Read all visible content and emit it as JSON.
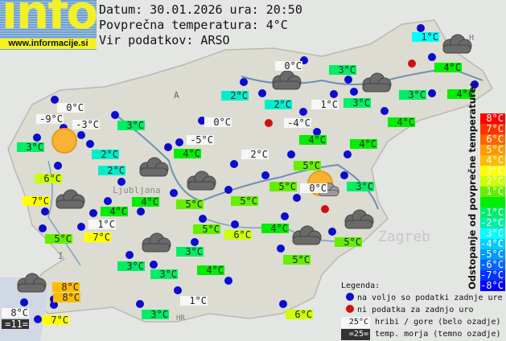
{
  "logo": {
    "word": "info",
    "url": "www.informacije.si"
  },
  "header": {
    "date_line": "Datum: 30.01.2026 ura: 20:50",
    "avg_line": "Povprečna temperatura: 4°C",
    "source_line": "Vir podatkov: ARSO"
  },
  "map_labels": {
    "austria": "A",
    "italy": "I",
    "croatia": "HR",
    "hungary": "H",
    "ljubljana": "Ljubljana",
    "zagreb": "Zagreb"
  },
  "stations": [
    {
      "t": "1°C",
      "type": "dm3"
    },
    {
      "t": "0°C",
      "type": "w"
    },
    {
      "t": "3°C",
      "type": "dm1"
    },
    {
      "t": "4°C",
      "type": "d0"
    },
    {
      "t": "2°C",
      "type": "dm2"
    },
    {
      "t": "3°C",
      "type": "dm1"
    },
    {
      "t": "4°C",
      "type": "d0"
    },
    {
      "t": "2°C",
      "type": "dm2"
    },
    {
      "t": "1°C",
      "type": "w"
    },
    {
      "t": "3°C",
      "type": "dm1"
    },
    {
      "t": "0°C",
      "type": "w"
    },
    {
      "t": "-9°C",
      "type": "w"
    },
    {
      "t": "-3°C",
      "type": "w"
    },
    {
      "t": "3°C",
      "type": "dm1"
    },
    {
      "t": "0°C",
      "type": "w"
    },
    {
      "t": "-4°C",
      "type": "w"
    },
    {
      "t": "4°C",
      "type": "d0"
    },
    {
      "t": "4°C",
      "type": "d0"
    },
    {
      "t": "4°C",
      "type": "d0"
    },
    {
      "t": "-5°C",
      "type": "w"
    },
    {
      "t": "3°C",
      "type": "dm1"
    },
    {
      "t": "4°C",
      "type": "d0"
    },
    {
      "t": "2°C",
      "type": "dm2"
    },
    {
      "t": "2°C",
      "type": "w"
    },
    {
      "t": "5°C",
      "type": "d1"
    },
    {
      "t": "2°C",
      "type": "dm2"
    },
    {
      "t": "6°C",
      "type": "d2"
    },
    {
      "t": "5°C",
      "type": "d1"
    },
    {
      "t": "0°C",
      "type": "w"
    },
    {
      "t": "3°C",
      "type": "dm1"
    },
    {
      "t": "7°C",
      "type": "d3"
    },
    {
      "t": "4°C",
      "type": "d0"
    },
    {
      "t": "5°C",
      "type": "d1"
    },
    {
      "t": "5°C",
      "type": "d1"
    },
    {
      "t": "4°C",
      "type": "d0"
    },
    {
      "t": "1°C",
      "type": "w"
    },
    {
      "t": "5°C",
      "type": "d1"
    },
    {
      "t": "7°C",
      "type": "d3"
    },
    {
      "t": "5°C",
      "type": "d1"
    },
    {
      "t": "6°C",
      "type": "d2"
    },
    {
      "t": "4°C",
      "type": "d0"
    },
    {
      "t": "5°C",
      "type": "d1"
    },
    {
      "t": "3°C",
      "type": "dm1"
    },
    {
      "t": "5°C",
      "type": "d1"
    },
    {
      "t": "3°C",
      "type": "dm1"
    },
    {
      "t": "3°C",
      "type": "dm1"
    },
    {
      "t": "4°C",
      "type": "d0"
    },
    {
      "t": "8°C",
      "type": "d4"
    },
    {
      "t": "8°C",
      "type": "d4"
    },
    {
      "t": "1°C",
      "type": "w"
    },
    {
      "t": "8°C",
      "type": "w"
    },
    {
      "t": "=11=",
      "type": "sea"
    },
    {
      "t": "7°C",
      "type": "d3"
    },
    {
      "t": "3°C",
      "type": "dm1"
    },
    {
      "t": "6°C",
      "type": "d2"
    }
  ],
  "scale": {
    "title": "Odstopanje od povprečne temperature:",
    "steps": [
      {
        "label": "8°C",
        "color": "#ff0000"
      },
      {
        "label": "7°C",
        "color": "#ff3300"
      },
      {
        "label": "6°C",
        "color": "#ff6600"
      },
      {
        "label": "5°C",
        "color": "#ff9900"
      },
      {
        "label": "4°C",
        "color": "#ffbb00"
      },
      {
        "label": "3°C",
        "color": "#ffff00"
      },
      {
        "label": "2°C",
        "color": "#ccff00"
      },
      {
        "label": "1°C",
        "color": "#66ee00"
      },
      {
        "label": "",
        "color": "#00ee00"
      },
      {
        "label": "-1°C",
        "color": "#00ee66"
      },
      {
        "label": "-2°C",
        "color": "#00eeaa"
      },
      {
        "label": "-3°C",
        "color": "#00ffff"
      },
      {
        "label": "-4°C",
        "color": "#00ccff"
      },
      {
        "label": "-5°C",
        "color": "#0099ff"
      },
      {
        "label": "-6°C",
        "color": "#0066ff"
      },
      {
        "label": "-7°C",
        "color": "#0033ff"
      },
      {
        "label": "-8°C",
        "color": "#0000ff"
      }
    ]
  },
  "legend": {
    "title": "Legenda:",
    "available": "na voljo so podatki zadnje ure",
    "missing": "ni podatka za zadnjo uro",
    "mountain_sample": "25°C",
    "mountain_text": "hribi / gore (belo ozadje)",
    "sea_sample": "=25=",
    "sea_text": "temp. morja (temno ozadje)"
  }
}
